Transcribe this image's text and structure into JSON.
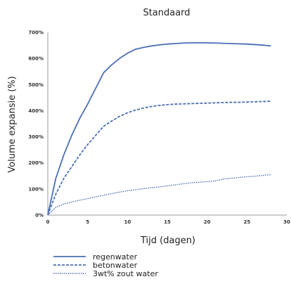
{
  "chart_data": {
    "type": "line",
    "title": "Standaard",
    "xlabel": "Tijd (dagen)",
    "ylabel": "Volume expansie (%)",
    "xlim": [
      0,
      30
    ],
    "ylim": [
      0,
      700
    ],
    "x_ticks": [
      "0",
      "5",
      "10",
      "15",
      "20",
      "25",
      "30"
    ],
    "y_ticks": [
      "0%",
      "100%",
      "200%",
      "300%",
      "400%",
      "500%",
      "600%",
      "700%"
    ],
    "grid": false,
    "legend_position": "bottom",
    "series": [
      {
        "name": "regenwater",
        "style": "solid",
        "color": "#4a6fb5",
        "x": [
          0,
          1,
          2,
          3,
          4,
          5,
          6,
          7,
          8,
          9,
          10,
          11,
          12,
          13,
          14,
          15,
          16,
          17,
          18,
          19,
          20,
          21,
          22,
          23,
          24,
          25,
          26,
          27,
          28
        ],
        "y": [
          0,
          140,
          230,
          305,
          370,
          425,
          485,
          545,
          575,
          600,
          620,
          635,
          642,
          648,
          652,
          655,
          657,
          659,
          660,
          660,
          660,
          659,
          658,
          657,
          656,
          655,
          653,
          651,
          648
        ]
      },
      {
        "name": "betonwater",
        "style": "dashed",
        "color": "#4a6fb5",
        "x": [
          0,
          1,
          2,
          3,
          4,
          5,
          6,
          7,
          8,
          9,
          10,
          11,
          12,
          13,
          14,
          15,
          16,
          17,
          18,
          19,
          20,
          21,
          22,
          23,
          24,
          25,
          26,
          27,
          28
        ],
        "y": [
          0,
          80,
          140,
          185,
          230,
          270,
          305,
          340,
          360,
          378,
          392,
          402,
          410,
          416,
          420,
          423,
          425,
          426,
          427,
          428,
          429,
          430,
          431,
          432,
          432,
          433,
          434,
          435,
          436
        ]
      },
      {
        "name": "3wt% zout water",
        "style": "dotted",
        "color": "#4a6fb5",
        "x": [
          0,
          1,
          2,
          3,
          4,
          5,
          6,
          7,
          8,
          9,
          10,
          11,
          12,
          13,
          14,
          15,
          16,
          17,
          18,
          19,
          20,
          21,
          22,
          23,
          24,
          25,
          26,
          27,
          28
        ],
        "y": [
          0,
          30,
          42,
          50,
          57,
          63,
          70,
          76,
          82,
          88,
          93,
          97,
          101,
          105,
          108,
          112,
          116,
          120,
          124,
          126,
          128,
          131,
          138,
          141,
          144,
          147,
          149,
          152,
          155
        ]
      }
    ]
  }
}
